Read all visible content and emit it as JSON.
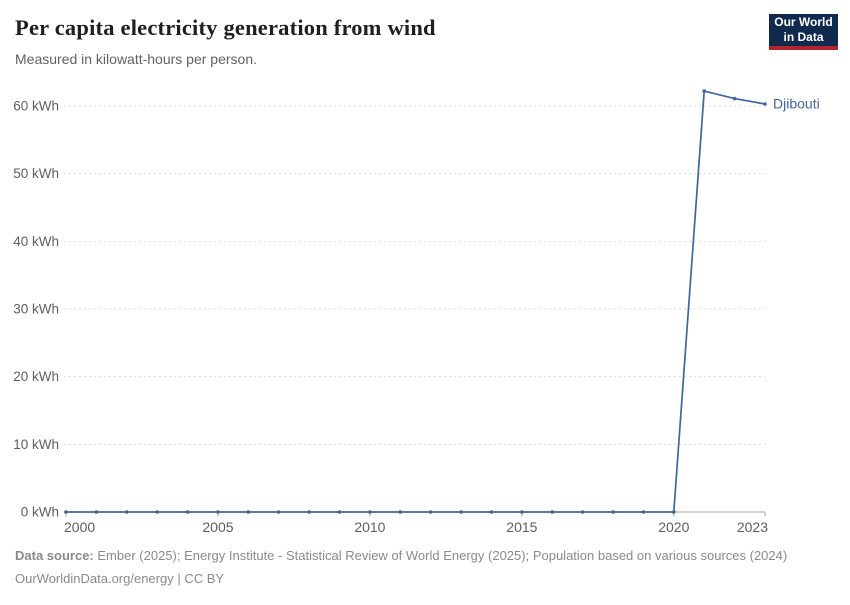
{
  "header": {
    "title": "Per capita electricity generation from wind",
    "subtitle": "Measured in kilowatt-hours per person."
  },
  "logo": {
    "line1": "Our World",
    "line2": "in Data",
    "bg_color": "#102a4e",
    "accent_color": "#b3242e"
  },
  "chart_data": {
    "type": "line",
    "title": "Per capita electricity generation from wind",
    "subtitle": "Measured in kilowatt-hours per person.",
    "xlim": [
      2000,
      2023
    ],
    "ylim": [
      0,
      60
    ],
    "grid": "horizontal-dashed",
    "legend_position": "end-of-line-label",
    "y_ticks": [
      {
        "value": 0,
        "label": "0 kWh"
      },
      {
        "value": 10,
        "label": "10 kWh"
      },
      {
        "value": 20,
        "label": "20 kWh"
      },
      {
        "value": 30,
        "label": "30 kWh"
      },
      {
        "value": 40,
        "label": "40 kWh"
      },
      {
        "value": 50,
        "label": "50 kWh"
      },
      {
        "value": 60,
        "label": "60 kWh"
      }
    ],
    "x_ticks": [
      {
        "value": 2000,
        "label": "2000"
      },
      {
        "value": 2005,
        "label": "2005"
      },
      {
        "value": 2010,
        "label": "2010"
      },
      {
        "value": 2015,
        "label": "2015"
      },
      {
        "value": 2020,
        "label": "2020"
      },
      {
        "value": 2023,
        "label": "2023"
      }
    ],
    "series": [
      {
        "name": "Djibouti",
        "color": "#3f669f",
        "x": [
          2000,
          2001,
          2002,
          2003,
          2004,
          2005,
          2006,
          2007,
          2008,
          2009,
          2010,
          2011,
          2012,
          2013,
          2014,
          2015,
          2016,
          2017,
          2018,
          2019,
          2020,
          2021,
          2022,
          2023
        ],
        "values": [
          0,
          0,
          0,
          0,
          0,
          0,
          0,
          0,
          0,
          0,
          0,
          0,
          0,
          0,
          0,
          0,
          0,
          0,
          0,
          0,
          0,
          62.2,
          61.1,
          60.3
        ]
      }
    ]
  },
  "footer": {
    "source_label": "Data source:",
    "source_text": "Ember (2025); Energy Institute - Statistical Review of World Energy (2025); Population based on various sources (2024)",
    "license": "OurWorldinData.org/energy | CC BY"
  }
}
